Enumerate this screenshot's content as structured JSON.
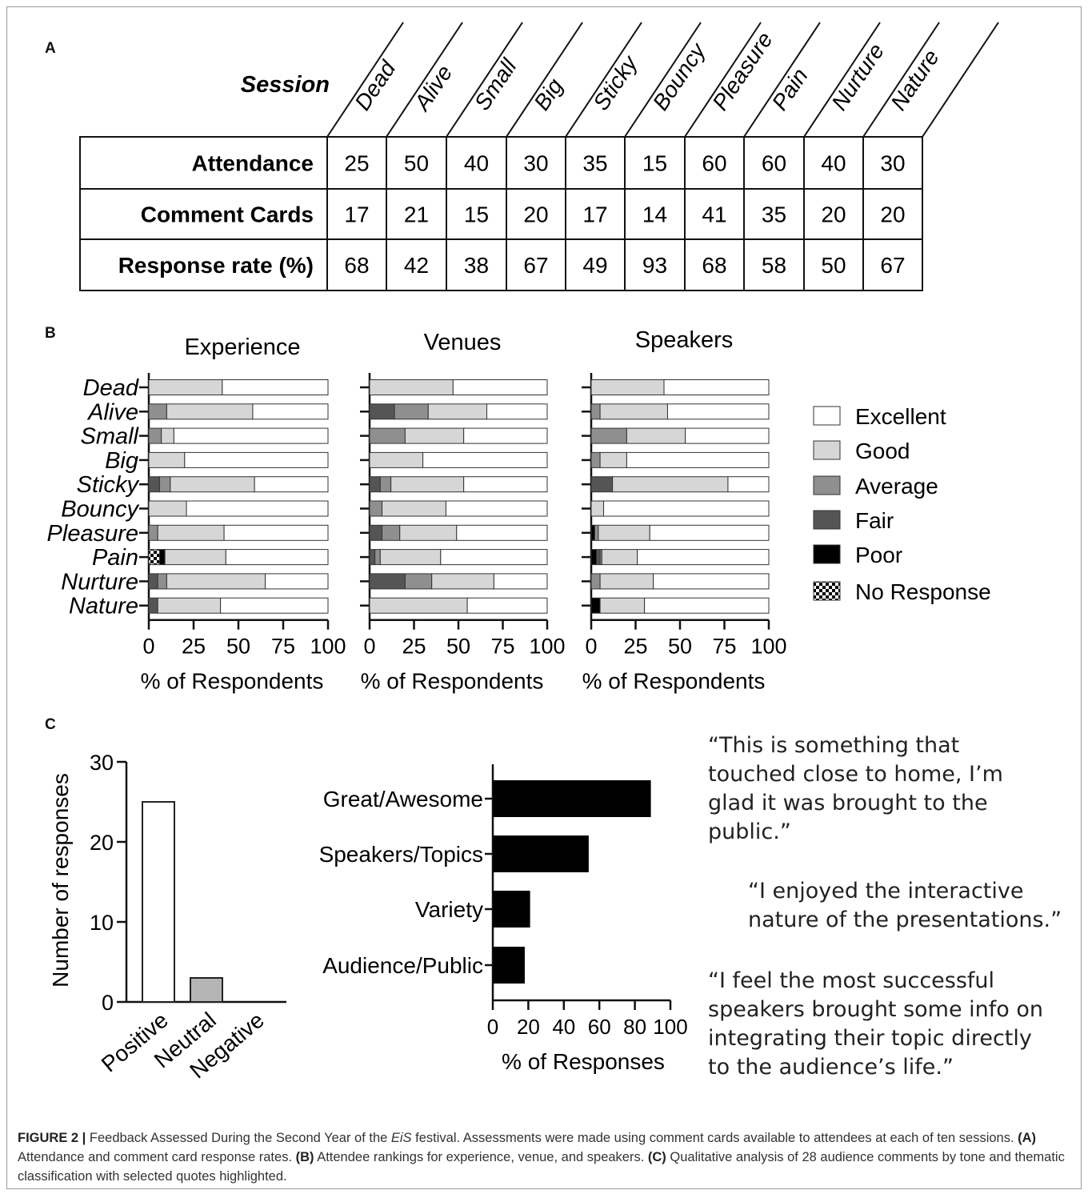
{
  "panels": {
    "a": "A",
    "b": "B",
    "c": "C"
  },
  "table": {
    "session_header": "Session",
    "sessions": [
      "Dead",
      "Alive",
      "Small",
      "Big",
      "Sticky",
      "Bouncy",
      "Pleasure",
      "Pain",
      "Nurture",
      "Nature"
    ],
    "rows": [
      {
        "label": "Attendance",
        "values": [
          25,
          50,
          40,
          30,
          35,
          15,
          60,
          60,
          40,
          30
        ]
      },
      {
        "label": "Comment Cards",
        "values": [
          17,
          21,
          15,
          20,
          17,
          14,
          41,
          35,
          20,
          20
        ]
      },
      {
        "label": "Response rate (%)",
        "values": [
          68,
          42,
          38,
          67,
          49,
          93,
          68,
          58,
          50,
          67
        ]
      }
    ]
  },
  "chart_data": [
    {
      "type": "bar",
      "orientation": "horizontal-stacked",
      "title": "Experience",
      "xlabel": "% of Respondents",
      "xlim": [
        0,
        100
      ],
      "xticks": [
        0,
        25,
        50,
        75,
        100
      ],
      "categories": [
        "Dead",
        "Alive",
        "Small",
        "Big",
        "Sticky",
        "Bouncy",
        "Pleasure",
        "Pain",
        "Nurture",
        "Nature"
      ],
      "series": [
        {
          "name": "No Response",
          "values": [
            0,
            0,
            0,
            0,
            0,
            0,
            0,
            6,
            0,
            0
          ]
        },
        {
          "name": "Poor",
          "values": [
            0,
            0,
            0,
            0,
            0,
            0,
            0,
            3,
            0,
            0
          ]
        },
        {
          "name": "Fair",
          "values": [
            0,
            0,
            0,
            0,
            6,
            0,
            0,
            0,
            5,
            5
          ]
        },
        {
          "name": "Average",
          "values": [
            0,
            10,
            7,
            0,
            6,
            0,
            5,
            0,
            5,
            0
          ]
        },
        {
          "name": "Good",
          "values": [
            41,
            48,
            7,
            20,
            47,
            21,
            37,
            34,
            55,
            35
          ]
        },
        {
          "name": "Excellent",
          "values": [
            59,
            42,
            86,
            80,
            41,
            79,
            58,
            57,
            35,
            60
          ]
        }
      ]
    },
    {
      "type": "bar",
      "orientation": "horizontal-stacked",
      "title": "Venues",
      "xlabel": "% of Respondents",
      "xlim": [
        0,
        100
      ],
      "xticks": [
        0,
        25,
        50,
        75,
        100
      ],
      "categories": [
        "Dead",
        "Alive",
        "Small",
        "Big",
        "Sticky",
        "Bouncy",
        "Pleasure",
        "Pain",
        "Nurture",
        "Nature"
      ],
      "series": [
        {
          "name": "No Response",
          "values": [
            0,
            0,
            0,
            0,
            0,
            0,
            0,
            0,
            0,
            0
          ]
        },
        {
          "name": "Poor",
          "values": [
            0,
            0,
            0,
            0,
            0,
            0,
            0,
            0,
            0,
            0
          ]
        },
        {
          "name": "Fair",
          "values": [
            0,
            14,
            0,
            0,
            6,
            0,
            7,
            3,
            20,
            0
          ]
        },
        {
          "name": "Average",
          "values": [
            0,
            19,
            20,
            0,
            6,
            7,
            10,
            3,
            15,
            0
          ]
        },
        {
          "name": "Good",
          "values": [
            47,
            33,
            33,
            30,
            41,
            36,
            32,
            34,
            35,
            55
          ]
        },
        {
          "name": "Excellent",
          "values": [
            53,
            34,
            47,
            70,
            47,
            57,
            51,
            60,
            30,
            45
          ]
        }
      ]
    },
    {
      "type": "bar",
      "orientation": "horizontal-stacked",
      "title": "Speakers",
      "xlabel": "% of Respondents",
      "xlim": [
        0,
        100
      ],
      "xticks": [
        0,
        25,
        50,
        75,
        100
      ],
      "categories": [
        "Dead",
        "Alive",
        "Small",
        "Big",
        "Sticky",
        "Bouncy",
        "Pleasure",
        "Pain",
        "Nurture",
        "Nature"
      ],
      "series": [
        {
          "name": "No Response",
          "values": [
            0,
            0,
            0,
            0,
            0,
            0,
            0,
            0,
            0,
            0
          ]
        },
        {
          "name": "Poor",
          "values": [
            0,
            0,
            0,
            0,
            0,
            0,
            2,
            3,
            0,
            5
          ]
        },
        {
          "name": "Fair",
          "values": [
            0,
            0,
            0,
            0,
            12,
            0,
            0,
            2,
            0,
            0
          ]
        },
        {
          "name": "Average",
          "values": [
            0,
            5,
            20,
            5,
            0,
            0,
            2,
            1,
            5,
            0
          ]
        },
        {
          "name": "Good",
          "values": [
            41,
            38,
            33,
            15,
            65,
            7,
            29,
            20,
            30,
            25
          ]
        },
        {
          "name": "Excellent",
          "values": [
            59,
            57,
            47,
            80,
            23,
            93,
            67,
            74,
            65,
            70
          ]
        }
      ]
    },
    {
      "type": "bar",
      "ylabel": "Number of responses",
      "ylim": [
        0,
        30
      ],
      "yticks": [
        0,
        10,
        20,
        30
      ],
      "categories": [
        "Positive",
        "Neutral",
        "Negative"
      ],
      "values": [
        25,
        3,
        0
      ]
    },
    {
      "type": "bar",
      "orientation": "horizontal",
      "xlabel": "% of Responses",
      "xlim": [
        0,
        100
      ],
      "xticks": [
        0,
        20,
        40,
        60,
        80,
        100
      ],
      "categories": [
        "Great/Awesome",
        "Speakers/Topics",
        "Variety",
        "Audience/Public"
      ],
      "values": [
        89,
        54,
        21,
        18
      ]
    }
  ],
  "legend": {
    "items": [
      {
        "label": "Excellent",
        "color": "#ffffff"
      },
      {
        "label": "Good",
        "color": "#d6d6d6"
      },
      {
        "label": "Average",
        "color": "#8f8f8f"
      },
      {
        "label": "Fair",
        "color": "#555555"
      },
      {
        "label": "Poor",
        "color": "#000000"
      },
      {
        "label": "No Response",
        "color": "checkered"
      }
    ]
  },
  "tone_colors": {
    "Positive": "#ffffff",
    "Neutral": "#b5b5b5",
    "Negative": "#ffffff"
  },
  "quotes": [
    "“This is something that\ntouched close to home, I’m\nglad it was brought to the\npublic.”",
    "“I enjoyed the interactive\nnature of the presentations.”",
    "“I feel the most successful\nspeakers brought some info on\nintegrating their topic directly\nto the audience’s life.”"
  ],
  "caption": {
    "figure_label": "FIGURE 2 |",
    "text_1": " Feedback Assessed During the Second Year of the ",
    "festival_name": "EiS",
    "text_2": " festival. Assessments were made using comment cards available to attendees at each of ten sessions. ",
    "a_label": "(A)",
    "a_text": " Attendance and comment card response rates. ",
    "b_label": "(B)",
    "b_text": " Attendee rankings for experience, venue, and speakers. ",
    "c_label": "(C)",
    "c_text": " Qualitative analysis of 28 audience comments by tone and thematic classification with selected quotes highlighted."
  }
}
